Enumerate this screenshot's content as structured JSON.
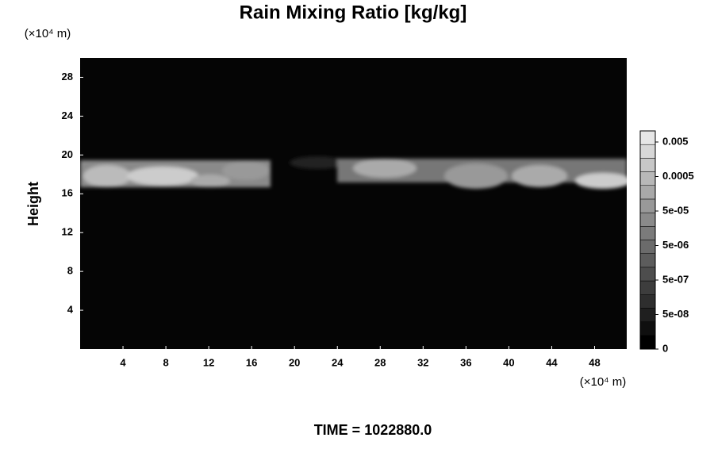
{
  "chart_data": {
    "type": "contour",
    "title": "Rain Mixing Ratio [kg/kg]",
    "ylabel": "Height",
    "x_unit": "(×10⁴ m)",
    "y_unit": "(×10⁴ m)",
    "xlim": [
      0,
      51
    ],
    "xticks": [
      4,
      8,
      12,
      16,
      20,
      24,
      28,
      32,
      36,
      40,
      44,
      48
    ],
    "ylim": [
      0,
      30
    ],
    "yticks": [
      4,
      8,
      12,
      16,
      20,
      24,
      28
    ],
    "colorbar_ticks": [
      0,
      {
        "value": 5e-08,
        "label": "5e-08"
      },
      {
        "value": 5e-07,
        "label": "5e-07"
      },
      {
        "value": 5e-06,
        "label": "5e-06"
      },
      {
        "value": 5e-05,
        "label": "5e-05"
      },
      0.0005,
      0.005
    ],
    "footer": "TIME = 1022880.0"
  }
}
